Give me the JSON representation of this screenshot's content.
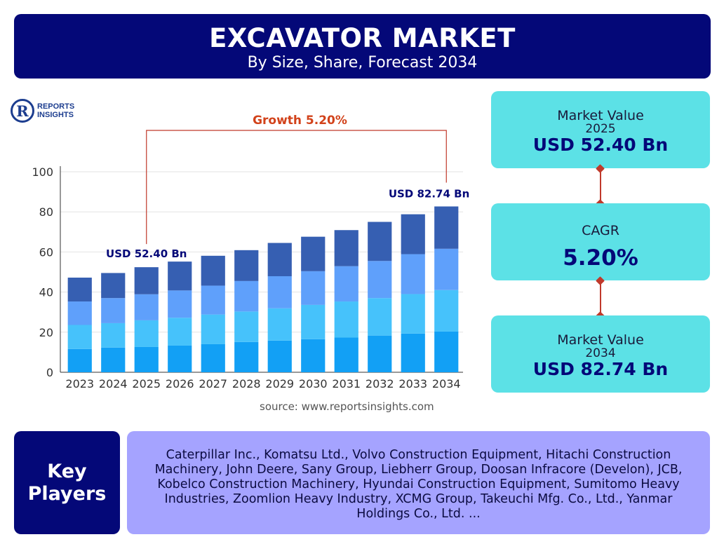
{
  "header": {
    "title": "EXCAVATOR MARKET",
    "subtitle": "By Size, Share, Forecast 2034"
  },
  "logo": {
    "line1": "REPORTS",
    "line2": "INSIGHTS",
    "mark": "R"
  },
  "chart_data": {
    "type": "bar",
    "stacked": true,
    "categories": [
      "2023",
      "2024",
      "2025",
      "2026",
      "2027",
      "2028",
      "2029",
      "2030",
      "2031",
      "2032",
      "2033",
      "2034"
    ],
    "series": [
      {
        "values": [
          11.6,
          12.3,
          12.6,
          13.3,
          14.0,
          15.1,
          15.8,
          16.5,
          17.3,
          18.3,
          19.3,
          20.3
        ]
      },
      {
        "values": [
          12.0,
          12.2,
          13.3,
          13.9,
          14.8,
          15.2,
          16.1,
          17.1,
          18.0,
          18.7,
          19.7,
          20.7
        ]
      },
      {
        "values": [
          11.7,
          12.5,
          13.0,
          13.6,
          14.4,
          15.2,
          16.0,
          16.8,
          17.6,
          18.5,
          19.9,
          20.6
        ]
      },
      {
        "values": [
          11.9,
          12.5,
          13.5,
          14.4,
          14.9,
          15.4,
          16.6,
          17.2,
          18.0,
          19.5,
          19.9,
          21.1
        ]
      }
    ],
    "series_colors": [
      "#12a0f5",
      "#46c2fb",
      "#5fa0fb",
      "#365fb2"
    ],
    "ylim": [
      0,
      100
    ],
    "yticks": [
      0,
      20,
      40,
      60,
      80,
      100
    ],
    "annotations": {
      "start_label": "USD 52.40 Bn",
      "end_label": "USD 82.74 Bn",
      "growth_label": "Growth 5.20%",
      "start_category": "2025",
      "end_category": "2034"
    },
    "grid": true
  },
  "source": "source: www.reportsinsights.com",
  "cards": {
    "start": {
      "label": "Market Value",
      "year": "2025",
      "value": "USD 52.40 Bn"
    },
    "cagr": {
      "label": "CAGR",
      "value": "5.20%"
    },
    "end": {
      "label": "Market Value",
      "year": "2034",
      "value": "USD 82.74 Bn"
    }
  },
  "key_players": {
    "label_line1": "Key",
    "label_line2": "Players",
    "list": "Caterpillar Inc., Komatsu Ltd., Volvo Construction Equipment, Hitachi Construction Machinery, John Deere, Sany Group, Liebherr Group, Doosan Infracore (Develon), JCB, Kobelco Construction Machinery, Hyundai Construction Equipment, Sumitomo Heavy Industries, Zoomlion Heavy Industry, XCMG Group, Takeuchi Mfg. Co., Ltd., Yanmar Holdings Co., Ltd. ..."
  },
  "colors": {
    "navy": "#040878",
    "cyan_card": "#5ce1e6",
    "lavender_panel": "#a5a3ff",
    "growth_red": "#c0392b"
  }
}
